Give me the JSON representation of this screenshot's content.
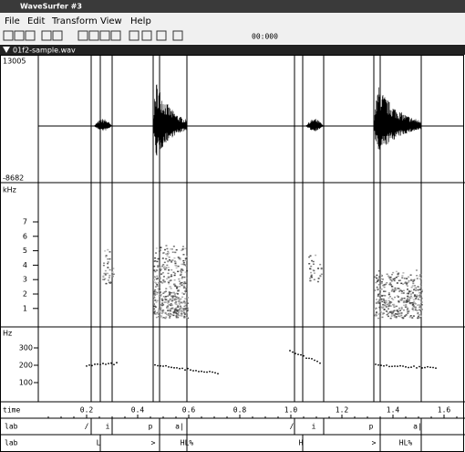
{
  "window": {
    "title": "WaveSurfer #3"
  },
  "menu": [
    "File",
    "Edit",
    "Transform",
    "View",
    "Help"
  ],
  "toolbar": {
    "time": "00:000"
  },
  "pane": {
    "title": "01f2-sample.wav"
  },
  "waveform": {
    "max": "13005",
    "min": "-8682"
  },
  "spectrogram": {
    "unit": "kHz",
    "ticks": [
      "7",
      "6",
      "5",
      "4",
      "3",
      "2",
      "1"
    ]
  },
  "pitch": {
    "unit": "Hz",
    "ticks": [
      "300",
      "200",
      "100"
    ]
  },
  "time_axis": {
    "label": "time",
    "ticks": [
      "0.2",
      "0.4",
      "0.6",
      "0.8",
      "1.0",
      "1.2",
      "1.4",
      "1.6"
    ]
  },
  "tiers": [
    {
      "name": "lab",
      "labels": [
        "/",
        "i",
        "p",
        "a|",
        "/",
        "i",
        "p",
        "a|"
      ]
    },
    {
      "name": "lab",
      "labels": [
        "L",
        ">",
        "HL%",
        "H",
        ">",
        "HL%"
      ]
    }
  ]
}
